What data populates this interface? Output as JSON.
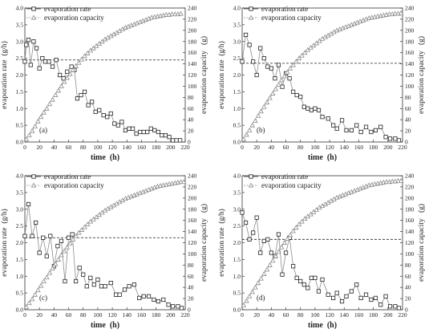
{
  "chart_data": [
    {
      "type": "line",
      "panel_label": "(a)",
      "xlabel": "time  (h)",
      "ylabel": "evaporation rate  (g/h)",
      "y2label": "evaporation capacity   (g)",
      "xlim": [
        0,
        220
      ],
      "ylim": [
        0,
        4.0
      ],
      "y2lim": [
        0,
        240
      ],
      "xticks": [
        "0",
        "20",
        "40",
        "60",
        "80",
        "100",
        "120",
        "140",
        "160",
        "180",
        "200",
        "220"
      ],
      "yticks": [
        "0.0",
        "0.5",
        "1.0",
        "1.5",
        "2.0",
        "2.5",
        "3.0",
        "3.5",
        "4.0"
      ],
      "y2ticks": [
        "0",
        "20",
        "40",
        "60",
        "80",
        "100",
        "120",
        "140",
        "160",
        "180",
        "200",
        "220",
        "240"
      ],
      "legend_position": "top-left",
      "mean_rate": 2.45,
      "series": [
        {
          "name": "evaporation rate",
          "axis": "left",
          "marker": "square",
          "x": [
            0,
            2,
            5,
            8,
            12,
            16,
            20,
            24,
            28,
            33,
            38,
            43,
            48,
            53,
            58,
            64,
            68,
            72,
            77,
            82,
            87,
            92,
            97,
            102,
            108,
            113,
            118,
            123,
            128,
            133,
            138,
            143,
            148,
            153,
            158,
            163,
            168,
            173,
            178,
            183,
            188,
            193,
            198,
            203,
            208,
            213
          ],
          "y": [
            2.4,
            2.9,
            3.05,
            2.3,
            3.0,
            2.8,
            2.2,
            2.5,
            2.4,
            2.4,
            2.25,
            2.45,
            2.0,
            1.9,
            2.1,
            2.25,
            2.15,
            1.3,
            1.4,
            1.5,
            1.1,
            1.2,
            0.9,
            0.95,
            0.8,
            0.75,
            0.85,
            0.55,
            0.5,
            0.6,
            0.35,
            0.4,
            0.4,
            0.25,
            0.3,
            0.3,
            0.3,
            0.4,
            0.35,
            0.3,
            0.2,
            0.2,
            0.15,
            0.05,
            0.05,
            0.05
          ]
        },
        {
          "name": "evaporation capacity",
          "axis": "right",
          "marker": "triangle",
          "x": [
            2,
            6,
            10,
            14,
            18,
            22,
            26,
            30,
            34,
            38,
            42,
            46,
            50,
            54,
            58,
            62,
            66,
            70,
            74,
            78,
            82,
            86,
            90,
            94,
            98,
            102,
            106,
            110,
            114,
            118,
            122,
            126,
            130,
            134,
            138,
            142,
            146,
            150,
            154,
            158,
            162,
            166,
            170,
            174,
            178,
            182,
            186,
            190,
            194,
            198,
            202,
            206,
            210,
            214
          ],
          "y": [
            5,
            12,
            20,
            28,
            37,
            45,
            53,
            60,
            68,
            76,
            84,
            92,
            100,
            108,
            115,
            122,
            129,
            136,
            142,
            148,
            154,
            159,
            164,
            168,
            172,
            176,
            180,
            184,
            187,
            190,
            193,
            196,
            199,
            202,
            205,
            207,
            209,
            211,
            213,
            215,
            217,
            219,
            221,
            223,
            224,
            225,
            226,
            227,
            228,
            228,
            229,
            229,
            229,
            230
          ]
        }
      ]
    },
    {
      "type": "line",
      "panel_label": "(b)",
      "xlabel": "time  (h)",
      "ylabel": "evaporation rate  (g/h)",
      "y2label": "evaporation capacity   (g)",
      "xlim": [
        0,
        220
      ],
      "ylim": [
        0,
        4.0
      ],
      "y2lim": [
        0,
        240
      ],
      "xticks": [
        "0",
        "20",
        "40",
        "60",
        "80",
        "100",
        "120",
        "140",
        "160",
        "180",
        "200",
        "220"
      ],
      "yticks": [
        "0.0",
        "0.5",
        "1.0",
        "1.5",
        "2.0",
        "2.5",
        "3.0",
        "3.5",
        "4.0"
      ],
      "y2ticks": [
        "0",
        "20",
        "40",
        "60",
        "80",
        "100",
        "120",
        "140",
        "160",
        "180",
        "200",
        "220",
        "240"
      ],
      "legend_position": "top-left",
      "mean_rate": 2.35,
      "series": [
        {
          "name": "evaporation rate",
          "axis": "left",
          "marker": "square",
          "x": [
            0,
            5,
            10,
            15,
            20,
            25,
            30,
            35,
            40,
            45,
            50,
            55,
            60,
            65,
            70,
            75,
            80,
            85,
            90,
            95,
            100,
            105,
            110,
            118,
            125,
            130,
            137,
            143,
            150,
            157,
            163,
            170,
            177,
            183,
            190,
            197,
            203,
            210,
            215
          ],
          "y": [
            2.4,
            3.2,
            2.9,
            2.4,
            2.0,
            2.8,
            2.5,
            2.25,
            2.2,
            1.9,
            2.3,
            1.65,
            2.05,
            1.9,
            1.5,
            1.4,
            1.35,
            1.05,
            1.0,
            0.95,
            1.0,
            0.95,
            0.75,
            0.7,
            0.5,
            0.4,
            0.65,
            0.35,
            0.35,
            0.5,
            0.3,
            0.45,
            0.3,
            0.35,
            0.45,
            0.15,
            0.1,
            0.1,
            0.05
          ]
        },
        {
          "name": "evaporation capacity",
          "axis": "right",
          "marker": "triangle",
          "x": [
            2,
            6,
            10,
            14,
            18,
            22,
            26,
            30,
            34,
            38,
            42,
            46,
            50,
            54,
            58,
            62,
            66,
            70,
            74,
            78,
            82,
            86,
            90,
            94,
            98,
            102,
            106,
            110,
            114,
            118,
            122,
            126,
            130,
            134,
            138,
            142,
            146,
            150,
            154,
            158,
            162,
            166,
            170,
            174,
            178,
            182,
            186,
            190,
            194,
            198,
            202,
            206,
            210,
            214,
            218
          ],
          "y": [
            5,
            13,
            21,
            30,
            38,
            47,
            55,
            63,
            71,
            79,
            87,
            95,
            103,
            111,
            118,
            125,
            132,
            138,
            144,
            150,
            155,
            160,
            165,
            169,
            173,
            177,
            181,
            185,
            188,
            191,
            194,
            197,
            200,
            202,
            204,
            206,
            208,
            210,
            212,
            214,
            216,
            218,
            220,
            222,
            223,
            224,
            225,
            226,
            227,
            228,
            229,
            229,
            230,
            230,
            231
          ]
        }
      ]
    },
    {
      "type": "line",
      "panel_label": "(c)",
      "xlabel": "time  (h)",
      "ylabel": "evaporation rate  (g/h)",
      "y2label": "evaporation capacity   (g)",
      "xlim": [
        0,
        220
      ],
      "ylim": [
        0,
        4.0
      ],
      "y2lim": [
        0,
        240
      ],
      "xticks": [
        "0",
        "20",
        "40",
        "60",
        "80",
        "100",
        "120",
        "140",
        "160",
        "180",
        "200",
        "220"
      ],
      "yticks": [
        "0.0",
        "0.5",
        "1.0",
        "1.5",
        "2.0",
        "2.5",
        "3.0",
        "3.5",
        "4.0"
      ],
      "y2ticks": [
        "0",
        "20",
        "40",
        "60",
        "80",
        "100",
        "120",
        "140",
        "160",
        "180",
        "200",
        "220",
        "240"
      ],
      "legend_position": "top-left",
      "mean_rate": 2.15,
      "series": [
        {
          "name": "evaporation rate",
          "axis": "left",
          "marker": "square",
          "x": [
            0,
            5,
            10,
            15,
            20,
            25,
            30,
            35,
            40,
            45,
            50,
            55,
            60,
            65,
            70,
            75,
            80,
            85,
            90,
            95,
            100,
            105,
            110,
            118,
            125,
            130,
            137,
            143,
            150,
            157,
            163,
            170,
            177,
            183,
            190,
            197,
            203,
            210,
            215
          ],
          "y": [
            2.2,
            3.15,
            2.2,
            2.6,
            1.7,
            2.15,
            1.6,
            2.2,
            1.3,
            1.9,
            2.05,
            0.85,
            2.15,
            2.25,
            0.85,
            1.25,
            1.05,
            0.7,
            0.95,
            0.75,
            0.9,
            0.7,
            0.7,
            0.8,
            0.45,
            0.45,
            0.6,
            0.7,
            0.75,
            0.35,
            0.4,
            0.4,
            0.3,
            0.25,
            0.3,
            0.15,
            0.1,
            0.1,
            0.05
          ]
        },
        {
          "name": "evaporation capacity",
          "axis": "right",
          "marker": "triangle",
          "x": [
            2,
            6,
            10,
            14,
            18,
            22,
            26,
            30,
            34,
            38,
            42,
            46,
            50,
            54,
            58,
            62,
            66,
            70,
            74,
            78,
            82,
            86,
            90,
            94,
            98,
            102,
            106,
            110,
            114,
            118,
            122,
            126,
            130,
            134,
            138,
            142,
            146,
            150,
            154,
            158,
            162,
            166,
            170,
            174,
            178,
            182,
            186,
            190,
            194,
            198,
            202,
            206,
            210,
            214,
            218
          ],
          "y": [
            5,
            12,
            19,
            27,
            35,
            43,
            51,
            58,
            66,
            74,
            82,
            90,
            98,
            105,
            112,
            119,
            126,
            132,
            138,
            143,
            148,
            153,
            158,
            162,
            166,
            170,
            174,
            178,
            181,
            184,
            187,
            190,
            193,
            196,
            199,
            201,
            203,
            205,
            207,
            209,
            211,
            213,
            215,
            217,
            219,
            221,
            222,
            223,
            224,
            225,
            226,
            227,
            228,
            229,
            229
          ]
        }
      ]
    },
    {
      "type": "line",
      "panel_label": "(d)",
      "xlabel": "time  (h)",
      "ylabel": "evaporation rate  (g/h)",
      "y2label": "evaporation capacity   (g)",
      "xlim": [
        0,
        220
      ],
      "ylim": [
        0,
        4.0
      ],
      "y2lim": [
        0,
        240
      ],
      "xticks": [
        "0",
        "20",
        "40",
        "60",
        "80",
        "100",
        "120",
        "140",
        "160",
        "180",
        "200",
        "220"
      ],
      "yticks": [
        "0.0",
        "0.5",
        "1.0",
        "1.5",
        "2.0",
        "2.5",
        "3.0",
        "3.5",
        "4.0"
      ],
      "y2ticks": [
        "0",
        "20",
        "40",
        "60",
        "80",
        "100",
        "120",
        "140",
        "160",
        "180",
        "200",
        "220",
        "240"
      ],
      "legend_position": "top-left",
      "mean_rate": 2.1,
      "series": [
        {
          "name": "evaporation rate",
          "axis": "left",
          "marker": "square",
          "x": [
            0,
            5,
            10,
            15,
            20,
            25,
            30,
            35,
            40,
            45,
            50,
            55,
            60,
            65,
            70,
            75,
            80,
            85,
            90,
            95,
            100,
            105,
            110,
            118,
            125,
            130,
            137,
            143,
            150,
            157,
            163,
            170,
            177,
            183,
            190,
            197,
            203,
            210,
            215
          ],
          "y": [
            2.9,
            2.6,
            2.1,
            2.3,
            2.75,
            1.7,
            2.05,
            2.1,
            1.7,
            1.6,
            2.25,
            1.05,
            1.7,
            2.15,
            1.3,
            0.95,
            0.85,
            0.75,
            0.65,
            0.95,
            0.95,
            0.55,
            0.9,
            0.45,
            0.35,
            0.5,
            0.25,
            0.4,
            0.55,
            0.75,
            0.35,
            0.45,
            0.3,
            0.35,
            0.15,
            0.4,
            0.1,
            0.1,
            0.05
          ]
        },
        {
          "name": "evaporation capacity",
          "axis": "right",
          "marker": "triangle",
          "x": [
            2,
            6,
            10,
            14,
            18,
            22,
            26,
            30,
            34,
            38,
            42,
            46,
            50,
            54,
            58,
            62,
            66,
            70,
            74,
            78,
            82,
            86,
            90,
            94,
            98,
            102,
            106,
            110,
            114,
            118,
            122,
            126,
            130,
            134,
            138,
            142,
            146,
            150,
            154,
            158,
            162,
            166,
            170,
            174,
            178,
            182,
            186,
            190,
            194,
            198,
            202,
            206,
            210,
            214,
            218
          ],
          "y": [
            8,
            16,
            24,
            32,
            40,
            48,
            56,
            64,
            72,
            80,
            88,
            96,
            104,
            112,
            120,
            127,
            134,
            141,
            147,
            153,
            158,
            163,
            167,
            171,
            175,
            179,
            183,
            186,
            189,
            192,
            195,
            198,
            201,
            203,
            205,
            207,
            209,
            211,
            213,
            215,
            217,
            219,
            221,
            223,
            224,
            225,
            226,
            227,
            228,
            229,
            229,
            230,
            230,
            231,
            231
          ]
        }
      ]
    }
  ]
}
